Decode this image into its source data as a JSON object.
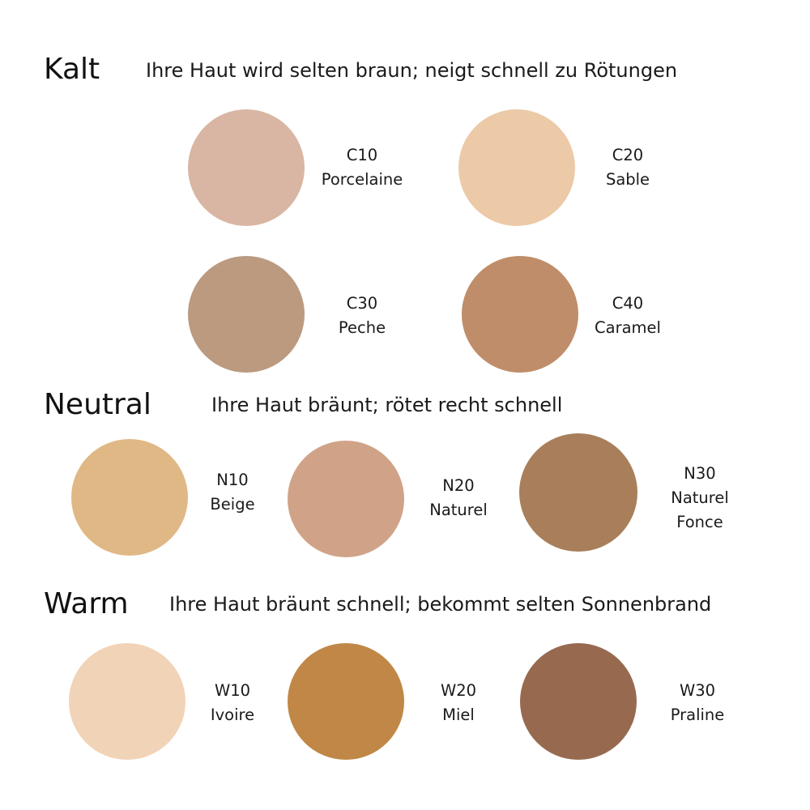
{
  "sections": [
    {
      "title": "Kalt",
      "description": "Ihre Haut wird selten braun; neigt schnell zu Rötungen",
      "shades": [
        {
          "code": "C10",
          "name": [
            "Porcelaine"
          ],
          "color": "#d9b6a3"
        },
        {
          "code": "C20",
          "name": [
            "Sable"
          ],
          "color": "#ecc9a7"
        },
        {
          "code": "C30",
          "name": [
            "Peche"
          ],
          "color": "#bb9a80"
        },
        {
          "code": "C40",
          "name": [
            "Caramel"
          ],
          "color": "#c08d6a"
        }
      ]
    },
    {
      "title": "Neutral",
      "description": "Ihre Haut bräunt; rötet recht schnell",
      "shades": [
        {
          "code": "N10",
          "name": [
            "Beige"
          ],
          "color": "#e0b886"
        },
        {
          "code": "N20",
          "name": [
            "Naturel"
          ],
          "color": "#d0a388"
        },
        {
          "code": "N30",
          "name": [
            "Naturel",
            "Fonce"
          ],
          "color": "#a87f5a"
        }
      ]
    },
    {
      "title": "Warm",
      "description": "Ihre Haut bräunt schnell; bekommt selten Sonnenbrand",
      "shades": [
        {
          "code": "W10",
          "name": [
            "Ivoire"
          ],
          "color": "#f1d3b7"
        },
        {
          "code": "W20",
          "name": [
            "Miel"
          ],
          "color": "#c08746"
        },
        {
          "code": "W30",
          "name": [
            "Praline"
          ],
          "color": "#976a50"
        }
      ]
    }
  ]
}
